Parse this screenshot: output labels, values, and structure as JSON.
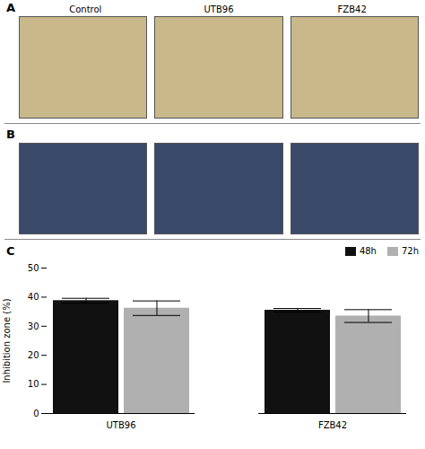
{
  "chart_data": {
    "type": "bar",
    "title": "C",
    "annotations": [
      "A",
      "Control",
      "UTB96",
      "FZB42",
      "B"
    ],
    "categories": [
      "UTB96",
      "FZB42"
    ],
    "series": [
      {
        "name": "48h",
        "color": "#111111",
        "values": [
          38.8,
          35.5
        ],
        "errors": [
          0.8,
          0.6
        ]
      },
      {
        "name": "72h",
        "color": "#b0b0b0",
        "values": [
          36.2,
          33.5
        ],
        "errors": [
          2.5,
          2.2
        ]
      }
    ],
    "ylabel": "Inhibition zone (%)",
    "ylim": [
      0,
      50
    ],
    "yticks": [
      0,
      10,
      20,
      30,
      40,
      50
    ],
    "legend": "upper right"
  }
}
